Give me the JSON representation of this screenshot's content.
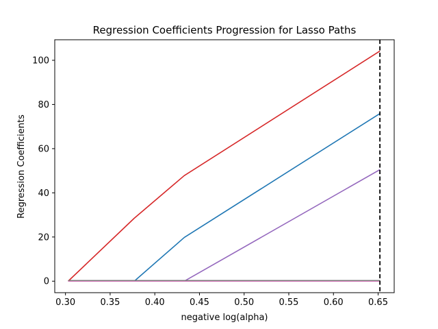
{
  "chart_data": {
    "type": "line",
    "title": "Regression Coefficients Progression for Lasso Paths",
    "xlabel": "negative log(alpha)",
    "ylabel": "Regression Coefficients",
    "xlim": [
      0.288,
      0.668
    ],
    "ylim": [
      -5.2,
      109.3
    ],
    "xticks": [
      0.3,
      0.35,
      0.4,
      0.45,
      0.5,
      0.55,
      0.6,
      0.65
    ],
    "xtick_labels": [
      "0.30",
      "0.35",
      "0.40",
      "0.45",
      "0.50",
      "0.55",
      "0.60",
      "0.65"
    ],
    "yticks": [
      0,
      20,
      40,
      60,
      80,
      100
    ],
    "ytick_labels": [
      "0",
      "20",
      "40",
      "60",
      "80",
      "100"
    ],
    "grid": false,
    "series": [
      {
        "color": "#d62728",
        "x": [
          0.303,
          0.377,
          0.433,
          0.652
        ],
        "y": [
          0,
          28.5,
          47.8,
          104.2
        ]
      },
      {
        "color": "#1f77b4",
        "x": [
          0.303,
          0.377,
          0.433,
          0.652
        ],
        "y": [
          0,
          0,
          19.8,
          75.9
        ]
      },
      {
        "color": "#9467bd",
        "x": [
          0.303,
          0.433,
          0.652
        ],
        "y": [
          0,
          0,
          50.5
        ]
      },
      {
        "color": "#e377c2",
        "x": [
          0.303,
          0.652
        ],
        "y": [
          0,
          0
        ]
      },
      {
        "color": "#7f7f7f",
        "x": [
          0.303,
          0.652
        ],
        "y": [
          0.3,
          0.3
        ]
      }
    ],
    "vline": {
      "x": 0.652,
      "color": "#000000",
      "style": "dashed"
    }
  }
}
